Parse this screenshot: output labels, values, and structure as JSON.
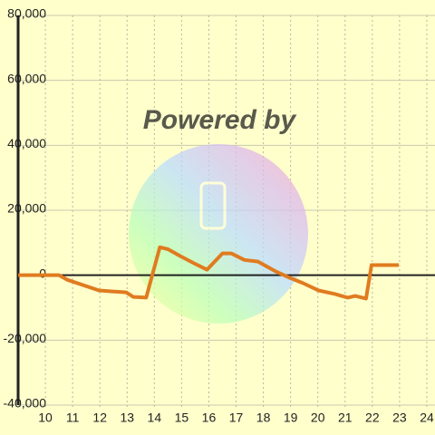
{
  "chart_data": {
    "type": "line",
    "watermark": "Powered by",
    "x": [
      9.0,
      10.5,
      10.8,
      11.97,
      12.47,
      12.97,
      13.23,
      13.7,
      14.2,
      14.5,
      14.97,
      15.47,
      15.93,
      16.5,
      16.83,
      17.3,
      17.8,
      18.47,
      18.97,
      19.47,
      20.03,
      20.63,
      20.87,
      21.1,
      21.37,
      21.77,
      21.97,
      22.97
    ],
    "series": [
      {
        "color": "#e07b20",
        "values": [
          0,
          0,
          -1400,
          -4700,
          -5000,
          -5300,
          -6700,
          -6900,
          8600,
          8000,
          5800,
          3600,
          1700,
          6700,
          6700,
          4700,
          4200,
          1100,
          -800,
          -2500,
          -4700,
          -5800,
          -6400,
          -6900,
          -6400,
          -7200,
          3100,
          3100
        ]
      }
    ],
    "xlim": [
      9,
      24.3
    ],
    "xticks": [
      10,
      11,
      12,
      13,
      14,
      15,
      16,
      17,
      18,
      19,
      20,
      21,
      22,
      23,
      24
    ],
    "ylim": [
      -40000,
      80000
    ],
    "yticks": [
      {
        "value": -40000,
        "label": "-40,000"
      },
      {
        "value": -20000,
        "label": "-20,000"
      },
      0,
      {
        "value": 20000,
        "label": "20,000"
      },
      {
        "value": 40000,
        "label": "40,000"
      },
      {
        "value": 60000,
        "label": "60,000"
      },
      {
        "value": 80000,
        "label": "80,000"
      }
    ],
    "grid": true
  }
}
